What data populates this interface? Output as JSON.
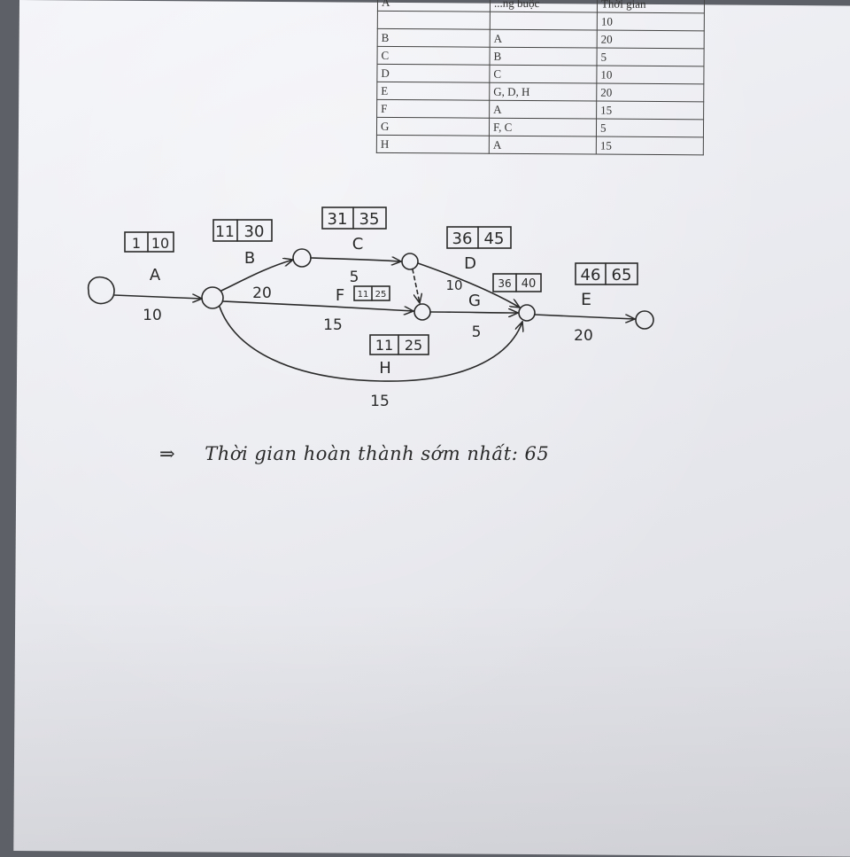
{
  "table": {
    "header": [
      "A",
      "...ng buộc",
      "Thời gian"
    ],
    "rows": [
      [
        "B",
        "A",
        "20"
      ],
      [
        "C",
        "B",
        "5"
      ],
      [
        "D",
        "C",
        "10"
      ],
      [
        "E",
        "G, D, H",
        "20"
      ],
      [
        "F",
        "A",
        "15"
      ],
      [
        "G",
        "F, C",
        "5"
      ],
      [
        "H",
        "A",
        "15"
      ]
    ],
    "a_duration": "10"
  },
  "diagram": {
    "activities": [
      {
        "name": "A",
        "es": "1",
        "ef": "10",
        "duration": "10"
      },
      {
        "name": "B",
        "es": "11",
        "ef": "30",
        "duration": "20"
      },
      {
        "name": "C",
        "es": "31",
        "ef": "35",
        "duration": "5"
      },
      {
        "name": "D",
        "es": "36",
        "ef": "45",
        "duration": "10"
      },
      {
        "name": "F",
        "es": "11",
        "ef": "25",
        "duration": "15"
      },
      {
        "name": "G",
        "es": "36",
        "ef": "40",
        "duration": "5"
      },
      {
        "name": "H",
        "es": "11",
        "ef": "25",
        "duration": "15"
      },
      {
        "name": "E",
        "es": "46",
        "ef": "65",
        "duration": "20"
      }
    ]
  },
  "conclusion": {
    "arrow": "⇒",
    "text": "Thời gian hoàn thành sớm nhất: 65"
  }
}
